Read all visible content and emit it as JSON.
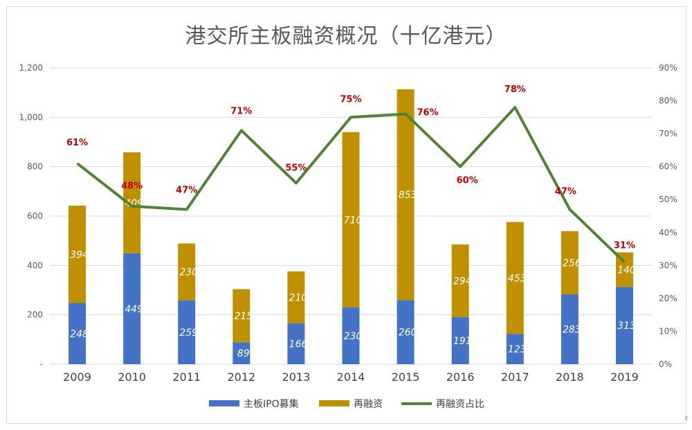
{
  "chart_data": {
    "type": "bar",
    "stacked": true,
    "title": "港交所主板融资概况（十亿港元）",
    "categories": [
      "2009",
      "2010",
      "2011",
      "2012",
      "2013",
      "2014",
      "2015",
      "2016",
      "2017",
      "2018",
      "2019"
    ],
    "series": [
      {
        "name": "主板IPO募集",
        "type": "bar",
        "axis": "left",
        "color": "#4472c4",
        "values": [
          248,
          449,
          259,
          89,
          166,
          230,
          260,
          191,
          123,
          283,
          313
        ],
        "labels": [
          "248",
          "449",
          "259",
          "89",
          "166",
          "230",
          "260",
          "191",
          "123",
          "283",
          "313"
        ]
      },
      {
        "name": "再融资",
        "type": "bar",
        "axis": "left",
        "color": "#bf9000",
        "values": [
          394,
          409,
          230,
          215,
          210,
          710,
          853,
          294,
          453,
          256,
          140
        ],
        "labels": [
          "394",
          "409",
          "230",
          "215",
          "210",
          "710",
          "853",
          "294",
          "453",
          "256",
          "140"
        ]
      },
      {
        "name": "再融资占比",
        "type": "line",
        "axis": "right",
        "color": "#548235",
        "values": [
          61,
          48,
          47,
          71,
          55,
          75,
          76,
          60,
          78,
          47,
          31
        ],
        "labels": [
          "61%",
          "48%",
          "47%",
          "71%",
          "55%",
          "75%",
          "76%",
          "60%",
          "78%",
          "47%",
          "31%"
        ]
      }
    ],
    "y_left": {
      "min": 0,
      "max": 1200,
      "ticks": [
        0,
        200,
        400,
        600,
        800,
        1000,
        1200
      ],
      "tick_labels": [
        "-",
        "200",
        "400",
        "600",
        "800",
        "1,000",
        "1,200"
      ]
    },
    "y_right": {
      "min": 0,
      "max": 90,
      "ticks": [
        0,
        10,
        20,
        30,
        40,
        50,
        60,
        70,
        80,
        90
      ],
      "tick_labels": [
        "0%",
        "10%",
        "20%",
        "30%",
        "40%",
        "50%",
        "60%",
        "70%",
        "80%",
        "90%"
      ]
    },
    "grid": true,
    "legend": "bottom",
    "colors": {
      "ipo": "#4472c4",
      "refi": "#bf9000",
      "ratio_line": "#548235",
      "pct_label": "#c00000",
      "grid": "#d9d9d9",
      "axis_text": "#595959"
    }
  },
  "corner_icon": "arrow-left-icon"
}
